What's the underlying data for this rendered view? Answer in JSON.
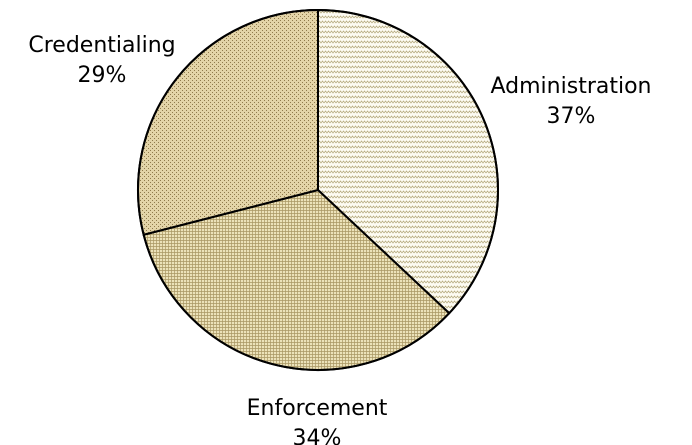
{
  "chart_data": {
    "type": "pie",
    "title": "",
    "categories": [
      "Administration",
      "Enforcement",
      "Credentialing"
    ],
    "values": [
      37,
      34,
      29
    ],
    "value_labels": [
      "37%",
      "34%",
      "29%"
    ],
    "start": "12 o'clock",
    "direction": "clockwise",
    "slice_colors": [
      "#fdfbf2",
      "#ece2b9",
      "#e3d4a8"
    ],
    "pattern_colors": [
      "#b8ad82",
      "#a99663",
      "#8f7a4c"
    ],
    "legend": "none"
  }
}
